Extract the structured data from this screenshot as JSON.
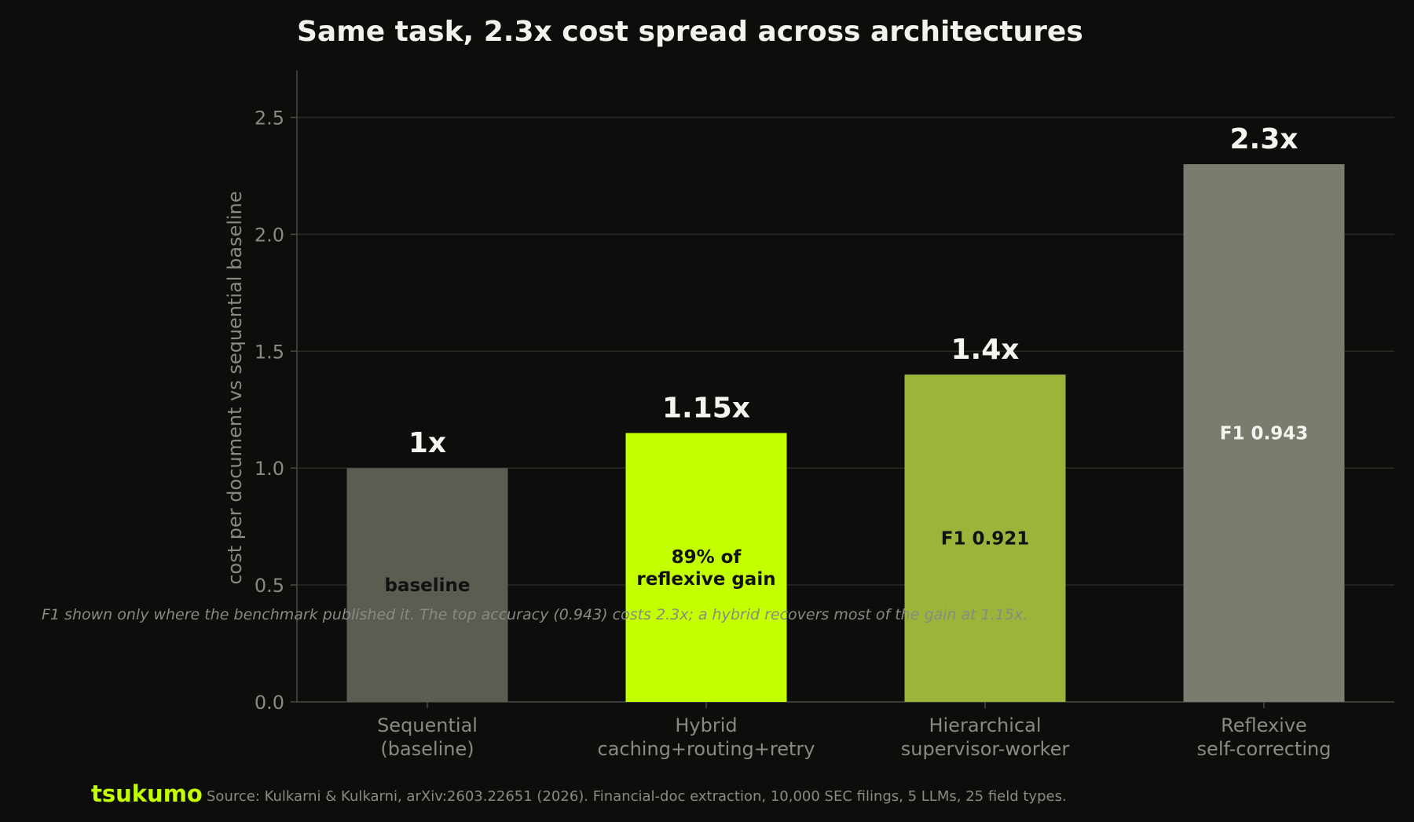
{
  "chart_data": {
    "type": "bar",
    "title": "Same task, 2.3x cost spread across architectures",
    "ylabel": "cost per document vs sequential baseline",
    "xlabel": "",
    "ylim": [
      0,
      2.7
    ],
    "yticks": [
      0.0,
      0.5,
      1.0,
      1.5,
      2.0,
      2.5
    ],
    "ytick_labels": [
      "0.0",
      "0.5",
      "1.0",
      "1.5",
      "2.0",
      "2.5"
    ],
    "grid": true,
    "categories": [
      [
        "Sequential",
        "(baseline)"
      ],
      [
        "Hybrid",
        "caching+routing+retry"
      ],
      [
        "Hierarchical",
        "supervisor-worker"
      ],
      [
        "Reflexive",
        "self-correcting"
      ]
    ],
    "values": [
      1.0,
      1.15,
      1.4,
      2.3
    ],
    "value_labels": [
      "1x",
      "1.15x",
      "1.4x",
      "2.3x"
    ],
    "inner_labels": [
      [
        "baseline"
      ],
      [
        "89% of",
        "reflexive gain"
      ],
      [
        "F1 0.921"
      ],
      [
        "F1 0.943"
      ]
    ],
    "bar_colors": [
      "#5a5d51",
      "#c4ff00",
      "#9bb53a",
      "#7a7c6d"
    ],
    "inner_label_colors": [
      "#111111",
      "#111111",
      "#111111",
      "#f4f4f0"
    ],
    "annotation": "F1 shown only where the benchmark published it. The top accuracy (0.943) costs 2.3x; a hybrid recovers most of the gain at 1.15x."
  },
  "footer": {
    "brand": "tsukumo",
    "source": "Source: Kulkarni & Kulkarni, arXiv:2603.22651 (2026). Financial-doc extraction, 10,000 SEC filings, 5 LLMs, 25 field types."
  },
  "colors": {
    "background": "#0d0d0b",
    "grid": "#2a2a26",
    "axis": "#4a4a44",
    "accent": "#c4ff00"
  }
}
